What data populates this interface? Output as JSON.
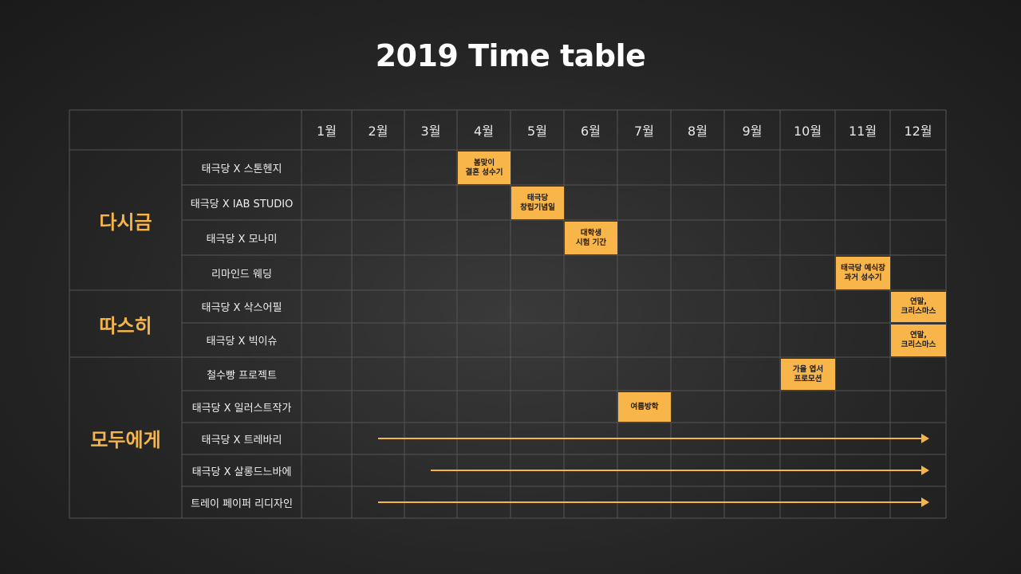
{
  "title": "2019 Time table",
  "colors": {
    "accent": "#f5b54a",
    "event_fill": "#f7b54a",
    "grid_line": "#555555"
  },
  "chart_data": {
    "type": "table",
    "months": [
      "1월",
      "2월",
      "3월",
      "4월",
      "5월",
      "6월",
      "7월",
      "8월",
      "9월",
      "10월",
      "11월",
      "12월"
    ],
    "categories": [
      {
        "label": "다시금",
        "rows": [
          0,
          1,
          2,
          3
        ]
      },
      {
        "label": "따스히",
        "rows": [
          4,
          5
        ]
      },
      {
        "label": "모두에게",
        "rows": [
          6,
          7,
          8,
          9,
          10
        ]
      }
    ],
    "rows": [
      {
        "label": "태극당 X 스톤헨지"
      },
      {
        "label": "태극당 X IAB STUDIO"
      },
      {
        "label": "태극당 X 모나미"
      },
      {
        "label": "리마인드 웨딩"
      },
      {
        "label": "태극당 X 삭스어필"
      },
      {
        "label": "태극당 X 빅이슈"
      },
      {
        "label": "철수빵 프로젝트"
      },
      {
        "label": "태극당 X 일러스트작가"
      },
      {
        "label": "태극당 X 트레바리"
      },
      {
        "label": "태극당 X 살롱드느바에"
      },
      {
        "label": "트레이 페이퍼 리디자인"
      }
    ],
    "events": [
      {
        "row": 0,
        "month": 4,
        "text": "봄맞이\n결혼 성수기"
      },
      {
        "row": 1,
        "month": 5,
        "text": "태극당\n창립기념일"
      },
      {
        "row": 2,
        "month": 6,
        "text": "대학생\n시험 기간"
      },
      {
        "row": 3,
        "month": 11,
        "text": "태극당 예식장\n과거 성수기"
      },
      {
        "row": 4,
        "month": 12,
        "text": "연말,\n크리스마스"
      },
      {
        "row": 5,
        "month": 12,
        "text": "연말,\n크리스마스"
      },
      {
        "row": 6,
        "month": 10,
        "text": "가을 엽서\n프로모션"
      },
      {
        "row": 7,
        "month": 7,
        "text": "여름방학"
      }
    ],
    "ranges": [
      {
        "row": 8,
        "start_month": 2,
        "end_month": 12
      },
      {
        "row": 9,
        "start_month": 3,
        "end_month": 12
      },
      {
        "row": 10,
        "start_month": 2,
        "end_month": 12
      }
    ]
  }
}
